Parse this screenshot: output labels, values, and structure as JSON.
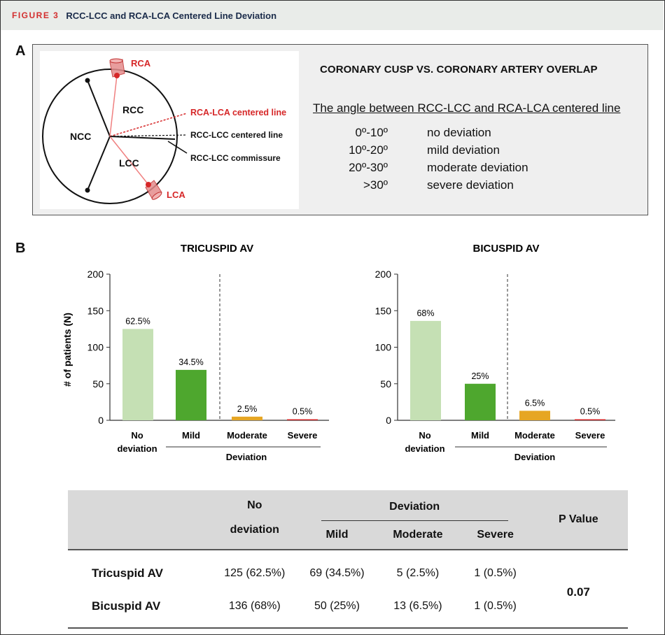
{
  "figure": {
    "label": "FIGURE 3",
    "title": "RCC-LCC and RCA-LCA Centered Line Deviation"
  },
  "panel_a": {
    "letter": "A",
    "diagram": {
      "rca": "RCA",
      "lca": "LCA",
      "rcc": "RCC",
      "ncc": "NCC",
      "lcc": "LCC",
      "rca_lca_line": "RCA-LCA centered line",
      "rcc_lcc_line": "RCC-LCC centered line",
      "commissure": "RCC-LCC commissure",
      "red": "#d62728"
    },
    "overlap_title": "CORONARY CUSP VS. CORONARY ARTERY OVERLAP",
    "angle_subtitle": "The angle between RCC-LCC and RCA-LCA centered line",
    "legend": [
      {
        "range": "0º-10º",
        "description": "no deviation"
      },
      {
        "range": "10º-20º",
        "description": "mild deviation"
      },
      {
        "range": "20º-30º",
        "description": "moderate deviation"
      },
      {
        "range": ">30º",
        "description": "severe deviation"
      }
    ]
  },
  "panel_b": {
    "letter": "B",
    "y_axis_label": "# of patients (N)",
    "group_label": "Deviation",
    "first_category_line2": "deviation"
  },
  "chart_data": [
    {
      "type": "bar",
      "title": "TRICUSPID AV",
      "categories": [
        "No",
        "Mild",
        "Moderate",
        "Severe"
      ],
      "values": [
        125,
        69,
        5,
        1
      ],
      "data_labels": [
        "62.5%",
        "34.5%",
        "2.5%",
        "0.5%"
      ],
      "colors": [
        "#c5e0b4",
        "#4ea72e",
        "#e6a623",
        "#d62728"
      ],
      "ylabel": "# of patients (N)",
      "ylim": [
        0,
        200
      ],
      "yticks": [
        0,
        50,
        100,
        150,
        200
      ],
      "grid": false
    },
    {
      "type": "bar",
      "title": "BICUSPID AV",
      "categories": [
        "No",
        "Mild",
        "Moderate",
        "Severe"
      ],
      "values": [
        136,
        50,
        13,
        1
      ],
      "data_labels": [
        "68%",
        "25%",
        "6.5%",
        "0.5%"
      ],
      "colors": [
        "#c5e0b4",
        "#4ea72e",
        "#e6a623",
        "#d62728"
      ],
      "ylabel": "",
      "ylim": [
        0,
        200
      ],
      "yticks": [
        0,
        50,
        100,
        150,
        200
      ],
      "grid": false
    }
  ],
  "table": {
    "headers": {
      "no_deviation_1": "No",
      "no_deviation_2": "deviation",
      "deviation": "Deviation",
      "mild": "Mild",
      "moderate": "Moderate",
      "severe": "Severe",
      "p_value": "P Value"
    },
    "rows": [
      {
        "label": "Tricuspid AV",
        "no_deviation": "125 (62.5%)",
        "mild": "69 (34.5%)",
        "moderate": "5 (2.5%)",
        "severe": "1 (0.5%)"
      },
      {
        "label": "Bicuspid AV",
        "no_deviation": "136 (68%)",
        "mild": "50 (25%)",
        "moderate": "13 (6.5%)",
        "severe": "1 (0.5%)"
      }
    ],
    "p_value": "0.07"
  }
}
